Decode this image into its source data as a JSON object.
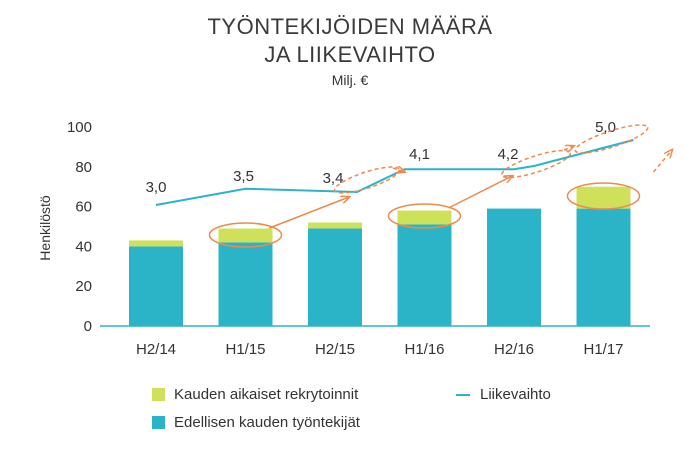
{
  "chart_data": {
    "type": "bar",
    "title_line1": "TYÖNTEKIJÖIDEN MÄÄRÄ",
    "title_line2": "JA LIIKEVAIHTO",
    "subtitle": "Milj. €",
    "ylabel": "Henkilöstö",
    "ylim": [
      0,
      100
    ],
    "yticks": [
      "0",
      "20",
      "40",
      "60",
      "80",
      "100"
    ],
    "categories": [
      "H2/14",
      "H1/15",
      "H2/15",
      "H1/16",
      "H2/16",
      "H1/17"
    ],
    "series": [
      {
        "name": "Edellisen kauden työntekijät",
        "values": [
          40,
          42,
          49,
          51,
          59,
          59
        ],
        "color": "#2bb4c8"
      },
      {
        "name": "Kauden aikaiset rekrytoinnit",
        "values": [
          3,
          7,
          3,
          7,
          0,
          11
        ],
        "color": "#cfe05a"
      }
    ],
    "line_series": {
      "name": "Liikevaihto",
      "values": [
        3.0,
        3.5,
        3.4,
        4.1,
        4.2,
        5.0
      ],
      "labels": [
        "3,0",
        "3,5",
        "3,4",
        "4,1",
        "4,2",
        "5,0"
      ],
      "color": "#2bb4c8"
    },
    "annotation_color": "#ef8a4c",
    "legend_placement": "bottom"
  }
}
